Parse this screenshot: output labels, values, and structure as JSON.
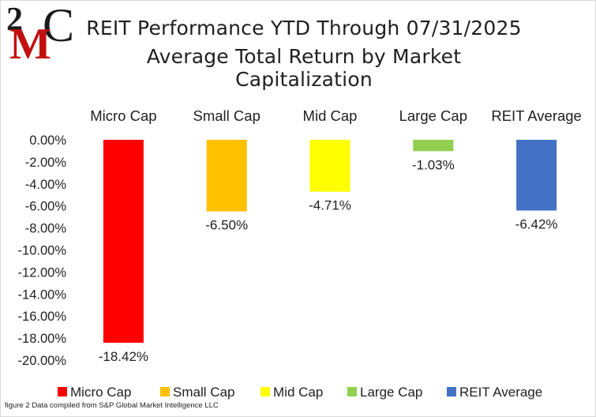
{
  "logo": {
    "text_top": "2",
    "text_mid": "M",
    "text_right": "C",
    "color_dark": "#1a1a1a",
    "color_red": "#c21010"
  },
  "chart_data": {
    "type": "bar",
    "title": "REIT Performance YTD Through 07/31/2025",
    "subtitle": "Average Total Return by Market Capitalization",
    "categories": [
      "Micro Cap",
      "Small Cap",
      "Mid Cap",
      "Large Cap",
      "REIT Average"
    ],
    "values": [
      -18.42,
      -6.5,
      -4.71,
      -1.03,
      -6.42
    ],
    "data_labels": [
      "-18.42%",
      "-6.50%",
      "-4.71%",
      "-1.03%",
      "-6.42%"
    ],
    "colors": [
      "#ff0000",
      "#ffc000",
      "#ffff00",
      "#92d050",
      "#4472c4"
    ],
    "ylim": [
      -20,
      0
    ],
    "yticks": [
      0,
      -2,
      -4,
      -6,
      -8,
      -10,
      -12,
      -14,
      -16,
      -18,
      -20
    ],
    "ytick_labels": [
      "0.00%",
      "-2.00%",
      "-4.00%",
      "-6.00%",
      "-8.00%",
      "-10.00%",
      "-12.00%",
      "-14.00%",
      "-16.00%",
      "-18.00%",
      "-20.00%"
    ],
    "category_axis_position": "top",
    "grid": false,
    "legend": {
      "position": "bottom",
      "entries": [
        "Micro Cap",
        "Small Cap",
        "Mid Cap",
        "Large Cap",
        "REIT Average"
      ]
    }
  },
  "footnote": "figure 2 Data compiled from S&P Global Market Intelligence LLC"
}
